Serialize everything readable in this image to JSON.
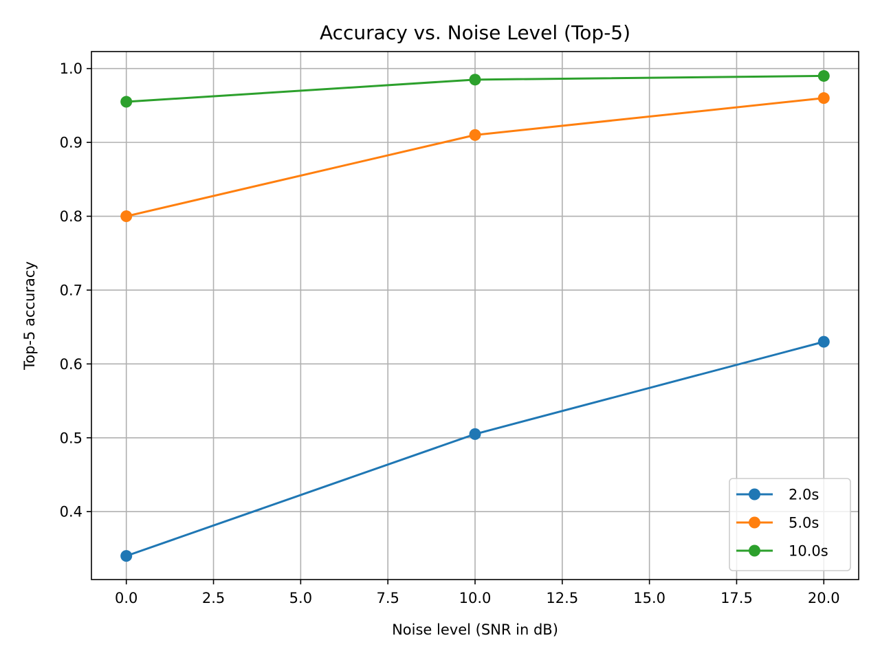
{
  "chart_data": {
    "type": "line",
    "title": "Accuracy vs. Noise Level (Top-5)",
    "xlabel": "Noise level (SNR in dB)",
    "ylabel": "Top-5 accuracy",
    "x": [
      0,
      10,
      20
    ],
    "xlim": [
      -1,
      21
    ],
    "ylim": [
      0.308,
      1.023
    ],
    "xticks": [
      0,
      2.5,
      5,
      7.5,
      10,
      12.5,
      15,
      17.5,
      20
    ],
    "xtick_labels": [
      "0.0",
      "2.5",
      "5.0",
      "7.5",
      "10.0",
      "12.5",
      "15.0",
      "17.5",
      "20.0"
    ],
    "yticks": [
      0.4,
      0.5,
      0.6,
      0.7,
      0.8,
      0.9,
      1.0
    ],
    "ytick_labels": [
      "0.4",
      "0.5",
      "0.6",
      "0.7",
      "0.8",
      "0.9",
      "1.0"
    ],
    "grid": true,
    "legend_position": "bottom-right",
    "series": [
      {
        "name": "2.0s",
        "color": "#1f77b4",
        "values": [
          0.34,
          0.505,
          0.63
        ]
      },
      {
        "name": "5.0s",
        "color": "#ff7f0e",
        "values": [
          0.8,
          0.91,
          0.96
        ]
      },
      {
        "name": "10.0s",
        "color": "#2ca02c",
        "values": [
          0.955,
          0.985,
          0.99
        ]
      }
    ]
  }
}
